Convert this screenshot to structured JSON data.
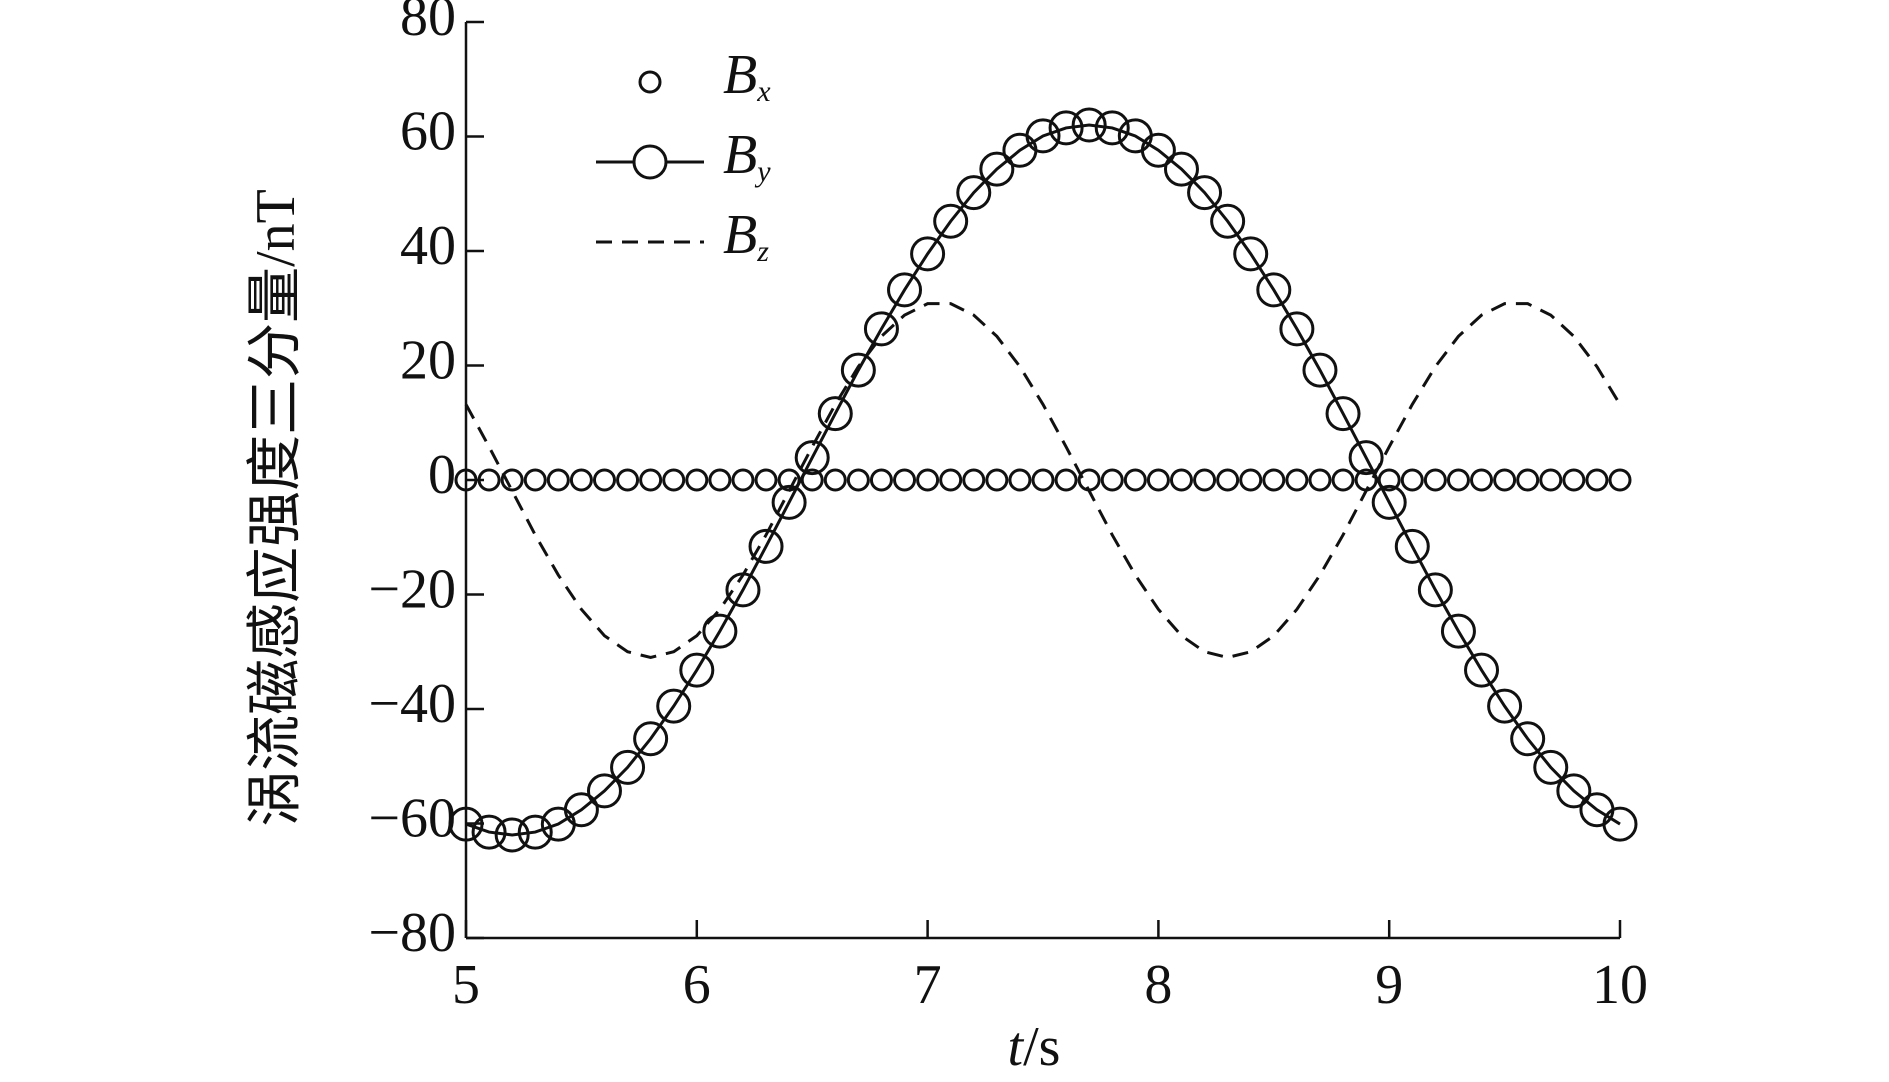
{
  "chart_data": {
    "type": "line",
    "xlabel": "t/s",
    "ylabel": "涡流磁感应强度三分量/nT",
    "x": [
      5.0,
      5.1,
      5.2,
      5.3,
      5.4,
      5.5,
      5.6,
      5.7,
      5.8,
      5.9,
      6.0,
      6.1,
      6.2,
      6.3,
      6.4,
      6.5,
      6.6,
      6.7,
      6.8,
      6.9,
      7.0,
      7.1,
      7.2,
      7.3,
      7.4,
      7.5,
      7.6,
      7.7,
      7.8,
      7.9,
      8.0,
      8.1,
      8.2,
      8.3,
      8.4,
      8.5,
      8.6,
      8.7,
      8.8,
      8.9,
      9.0,
      9.1,
      9.2,
      9.3,
      9.4,
      9.5,
      9.6,
      9.7,
      9.8,
      9.9,
      10.0
    ],
    "series": [
      {
        "name": "Bx",
        "color": "#111111",
        "marker": "circle",
        "marker_size": "small",
        "linestyle": "none",
        "values": [
          0,
          0,
          0,
          0,
          0,
          0,
          0,
          0,
          0,
          0,
          0,
          0,
          0,
          0,
          0,
          0,
          0,
          0,
          0,
          0,
          0,
          0,
          0,
          0,
          0,
          0,
          0,
          0,
          0,
          0,
          0,
          0,
          0,
          0,
          0,
          0,
          0,
          0,
          0,
          0,
          0,
          0,
          0,
          0,
          0,
          0,
          0,
          0,
          0,
          0,
          0
        ]
      },
      {
        "name": "By",
        "color": "#111111",
        "marker": "circle",
        "marker_size": "large",
        "linestyle": "solid",
        "values": [
          -60.1,
          -61.5,
          -62,
          -61.5,
          -60.1,
          -57.6,
          -54.3,
          -50.2,
          -45.2,
          -39.5,
          -33.2,
          -26.4,
          -19.2,
          -11.6,
          -3.9,
          3.9,
          11.6,
          19.2,
          26.4,
          33.2,
          39.5,
          45.2,
          50.2,
          54.3,
          57.6,
          60.1,
          61.5,
          62,
          61.5,
          60.1,
          57.6,
          54.3,
          50.2,
          45.2,
          39.5,
          33.2,
          26.4,
          19.2,
          11.6,
          3.9,
          -3.9,
          -11.6,
          -19.2,
          -26.4,
          -33.2,
          -39.5,
          -45.2,
          -50.2,
          -54.3,
          -57.6,
          -60.1
        ]
      },
      {
        "name": "Bz",
        "color": "#111111",
        "marker": "none",
        "linestyle": "dashed",
        "values": [
          13.2,
          5.8,
          -1.9,
          -9.6,
          -16.6,
          -22.6,
          -27.2,
          -30.0,
          -31,
          -30.0,
          -27.2,
          -22.6,
          -16.6,
          -9.6,
          -1.9,
          5.8,
          13.2,
          19.8,
          25.1,
          28.8,
          30.8,
          30.8,
          28.8,
          25.1,
          19.8,
          13.2,
          5.8,
          -1.9,
          -9.6,
          -16.6,
          -22.6,
          -27.2,
          -30.0,
          -31,
          -30.0,
          -27.2,
          -22.6,
          -16.6,
          -9.6,
          -1.9,
          5.8,
          13.2,
          19.8,
          25.1,
          28.8,
          30.8,
          30.8,
          28.8,
          25.1,
          19.8,
          13.2
        ]
      }
    ],
    "xlim": [
      5,
      10
    ],
    "xticks": [
      5,
      6,
      7,
      8,
      9,
      10
    ],
    "ylim": [
      -80,
      80
    ],
    "yticks": [
      {
        "value": -80,
        "label": "−80"
      },
      {
        "value": -60,
        "label": "−60"
      },
      {
        "value": -40,
        "label": "−40"
      },
      {
        "value": -20,
        "label": "−20"
      },
      0,
      20,
      40,
      60,
      80
    ],
    "grid": false,
    "legend": "upper left"
  }
}
